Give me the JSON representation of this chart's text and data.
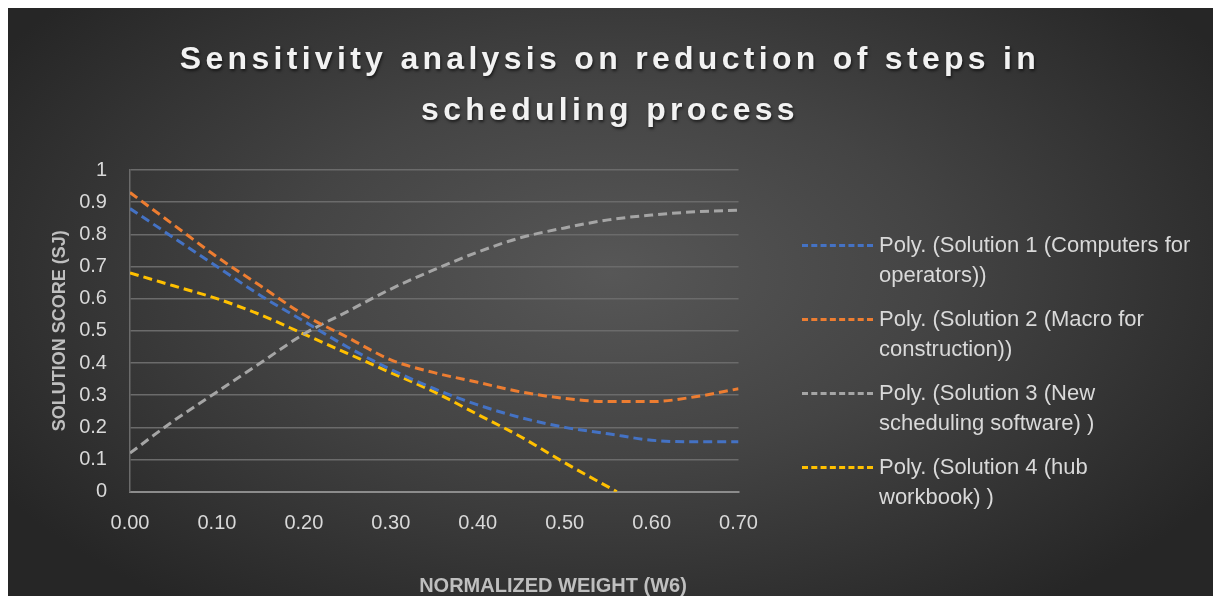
{
  "chart_data": {
    "type": "line",
    "title": "Sensitivity analysis on reduction of steps in scheduling process",
    "xlabel": "NORMALIZED WEIGHT (W6)",
    "ylabel": "SOLUTION SCORE (SJ)",
    "x": [
      0,
      0.05,
      0.1,
      0.15,
      0.2,
      0.25,
      0.3,
      0.35,
      0.4,
      0.45,
      0.5,
      0.55,
      0.6,
      0.65,
      0.7
    ],
    "series": [
      {
        "name": "Poly. (Solution 1 (Computers for operators))",
        "color": "#4472c4",
        "values": [
          0.88,
          0.79,
          0.7,
          0.61,
          0.53,
          0.45,
          0.38,
          0.32,
          0.27,
          0.23,
          0.2,
          0.18,
          0.16,
          0.155,
          0.155
        ]
      },
      {
        "name": "Poly. (Solution 2 (Macro for construction))",
        "color": "#ed7d31",
        "values": [
          0.93,
          0.83,
          0.73,
          0.64,
          0.55,
          0.48,
          0.41,
          0.37,
          0.34,
          0.31,
          0.29,
          0.28,
          0.28,
          0.295,
          0.32
        ]
      },
      {
        "name": "Poly. (Solution 3 (New scheduling software) )",
        "color": "#a5a5a5",
        "values": [
          0.12,
          0.22,
          0.31,
          0.4,
          0.49,
          0.56,
          0.63,
          0.69,
          0.745,
          0.79,
          0.82,
          0.845,
          0.86,
          0.87,
          0.875
        ]
      },
      {
        "name": "Poly. (Solution 4 (hub workbook) )",
        "color": "#ffc000",
        "x": [
          0,
          0.05,
          0.1,
          0.15,
          0.2,
          0.25,
          0.3,
          0.35,
          0.4,
          0.45,
          0.5,
          0.56
        ],
        "values": [
          0.68,
          0.64,
          0.6,
          0.55,
          0.49,
          0.43,
          0.37,
          0.31,
          0.24,
          0.17,
          0.09,
          0
        ]
      }
    ],
    "xlim": [
      0,
      0.7
    ],
    "xticks": [
      {
        "value": 0,
        "label": "0.00"
      },
      {
        "value": 0.1,
        "label": "0.10"
      },
      {
        "value": 0.2,
        "label": "0.20"
      },
      {
        "value": 0.3,
        "label": "0.30"
      },
      {
        "value": 0.4,
        "label": "0.40"
      },
      {
        "value": 0.5,
        "label": "0.50"
      },
      {
        "value": 0.6,
        "label": "0.60"
      },
      {
        "value": 0.7,
        "label": "0.70"
      }
    ],
    "ylim": [
      0,
      1
    ],
    "yticks": [
      0,
      0.1,
      0.2,
      0.3,
      0.4,
      0.5,
      0.6,
      0.7,
      0.8,
      0.9,
      1
    ],
    "grid": "y",
    "legend": "right",
    "marker": "none",
    "line_style": "dashed"
  }
}
